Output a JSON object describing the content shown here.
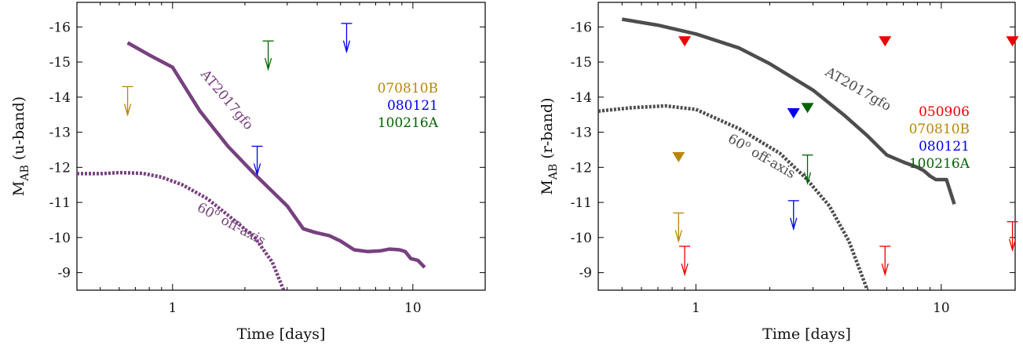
{
  "colors": {
    "ugrb_ext_red": "#ee0000",
    "gold": "#b8860b",
    "blue": "#0000ee",
    "green": "#006400",
    "purple": "#77407f",
    "grey": "#4d4d4d"
  },
  "chart_data": [
    {
      "type": "line",
      "xlabel": "Time [days]",
      "ylabel_main": "M",
      "ylabel_sub": "AB",
      "ylabel_suffix": " (u-band)",
      "xscale": "log",
      "xlim": [
        0.4,
        20
      ],
      "ylim": [
        -8.5,
        -16.7
      ],
      "y_inverted": true,
      "xticks": [
        {
          "v": 1,
          "label": "1"
        },
        {
          "v": 10,
          "label": "10"
        }
      ],
      "yticks": [
        {
          "v": -9,
          "label": "-9"
        },
        {
          "v": -10,
          "label": "-10"
        },
        {
          "v": -11,
          "label": "-11"
        },
        {
          "v": -12,
          "label": "-12"
        },
        {
          "v": -13,
          "label": "-13"
        },
        {
          "v": -14,
          "label": "-14"
        },
        {
          "v": -15,
          "label": "-15"
        },
        {
          "v": -16,
          "label": "-16"
        }
      ],
      "grid": false,
      "legend_position": "right",
      "series": [
        {
          "label": "AT2017gfo",
          "color_key": "purple",
          "style": "solid",
          "points": [
            [
              0.65,
              -15.55
            ],
            [
              0.8,
              -15.2
            ],
            [
              1.0,
              -14.85
            ],
            [
              1.3,
              -13.6
            ],
            [
              1.7,
              -12.6
            ],
            [
              2.2,
              -11.8
            ],
            [
              3.0,
              -10.9
            ],
            [
              3.5,
              -10.25
            ],
            [
              3.9,
              -10.15
            ],
            [
              4.5,
              -10.05
            ],
            [
              5.0,
              -9.9
            ],
            [
              5.7,
              -9.65
            ],
            [
              6.5,
              -9.6
            ],
            [
              7.3,
              -9.62
            ],
            [
              8.0,
              -9.67
            ],
            [
              8.8,
              -9.65
            ],
            [
              9.3,
              -9.6
            ],
            [
              9.8,
              -9.4
            ],
            [
              10.5,
              -9.35
            ],
            [
              11.2,
              -9.15
            ]
          ]
        },
        {
          "label": "60° off-axis",
          "label_base": "60",
          "label_sup": "o",
          "label_rest": " off-axis",
          "color_key": "purple",
          "style": "dotted",
          "points": [
            [
              0.4,
              -11.82
            ],
            [
              0.5,
              -11.82
            ],
            [
              0.6,
              -11.85
            ],
            [
              0.75,
              -11.83
            ],
            [
              0.9,
              -11.72
            ],
            [
              1.1,
              -11.5
            ],
            [
              1.4,
              -11.1
            ],
            [
              1.8,
              -10.5
            ],
            [
              2.2,
              -10.0
            ],
            [
              2.6,
              -9.3
            ],
            [
              2.9,
              -8.5
            ]
          ]
        }
      ],
      "limits": [
        {
          "color_key": "gold",
          "x": 0.65,
          "y": -14.3,
          "marker": "arrow"
        },
        {
          "color_key": "blue",
          "x": 2.25,
          "y": -12.6,
          "marker": "arrow"
        },
        {
          "color_key": "green",
          "x": 2.5,
          "y": -15.6,
          "marker": "arrow"
        },
        {
          "color_key": "blue",
          "x": 5.3,
          "y": -16.1,
          "marker": "arrow"
        }
      ],
      "legend": [
        {
          "label": "070810B",
          "color_key": "gold"
        },
        {
          "label": "080121",
          "color_key": "blue"
        },
        {
          "label": "100216A",
          "color_key": "green"
        }
      ]
    },
    {
      "type": "line",
      "xlabel": "Time [days]",
      "ylabel_main": "M",
      "ylabel_sub": "AB",
      "ylabel_suffix": " (r-band)",
      "xscale": "log",
      "xlim": [
        0.4,
        20
      ],
      "ylim": [
        -8.5,
        -16.7
      ],
      "y_inverted": true,
      "xticks": [
        {
          "v": 1,
          "label": "1"
        },
        {
          "v": 10,
          "label": "10"
        }
      ],
      "yticks": [
        {
          "v": -9,
          "label": "-9"
        },
        {
          "v": -10,
          "label": "-10"
        },
        {
          "v": -11,
          "label": "-11"
        },
        {
          "v": -12,
          "label": "-12"
        },
        {
          "v": -13,
          "label": "-13"
        },
        {
          "v": -14,
          "label": "-14"
        },
        {
          "v": -15,
          "label": "-15"
        },
        {
          "v": -16,
          "label": "-16"
        }
      ],
      "grid": false,
      "legend_position": "right",
      "series": [
        {
          "label": "AT2017gfo",
          "color_key": "grey",
          "style": "solid",
          "points": [
            [
              0.5,
              -16.22
            ],
            [
              0.7,
              -16.05
            ],
            [
              1.0,
              -15.8
            ],
            [
              1.5,
              -15.4
            ],
            [
              2.0,
              -14.95
            ],
            [
              3.0,
              -14.2
            ],
            [
              4.0,
              -13.5
            ],
            [
              5.0,
              -12.9
            ],
            [
              6.0,
              -12.35
            ],
            [
              7.0,
              -12.15
            ],
            [
              8.0,
              -12.0
            ],
            [
              8.5,
              -11.9
            ],
            [
              9.0,
              -11.75
            ],
            [
              9.5,
              -11.65
            ],
            [
              10.5,
              -11.65
            ],
            [
              11.3,
              -10.95
            ]
          ]
        },
        {
          "label": "60° off-axis",
          "label_base": "60",
          "label_sup": "o",
          "label_rest": " off-axis",
          "color_key": "grey",
          "style": "dotted",
          "points": [
            [
              0.4,
              -13.6
            ],
            [
              0.55,
              -13.7
            ],
            [
              0.75,
              -13.75
            ],
            [
              1.0,
              -13.65
            ],
            [
              1.5,
              -13.1
            ],
            [
              2.2,
              -12.4
            ],
            [
              2.8,
              -11.7
            ],
            [
              3.5,
              -10.9
            ],
            [
              4.2,
              -9.9
            ],
            [
              4.7,
              -9.0
            ],
            [
              5.0,
              -8.5
            ]
          ]
        }
      ],
      "detections": [
        {
          "color_key": "ugrb_ext_red",
          "x": 0.9,
          "y": -15.6,
          "marker": "triangle-down"
        },
        {
          "color_key": "ugrb_ext_red",
          "x": 5.9,
          "y": -15.6,
          "marker": "triangle-down"
        },
        {
          "color_key": "ugrb_ext_red",
          "x": 19.5,
          "y": -15.6,
          "marker": "triangle-down"
        },
        {
          "color_key": "gold",
          "x": 0.85,
          "y": -12.3,
          "marker": "triangle-down"
        },
        {
          "color_key": "blue",
          "x": 2.5,
          "y": -13.55,
          "marker": "triangle-down"
        },
        {
          "color_key": "green",
          "x": 2.85,
          "y": -13.7,
          "marker": "triangle-down"
        }
      ],
      "limits": [
        {
          "color_key": "gold",
          "x": 0.85,
          "y": -10.7,
          "marker": "arrow"
        },
        {
          "color_key": "ugrb_ext_red",
          "x": 0.9,
          "y": -9.75,
          "marker": "arrow"
        },
        {
          "color_key": "blue",
          "x": 2.5,
          "y": -11.05,
          "marker": "arrow"
        },
        {
          "color_key": "green",
          "x": 2.85,
          "y": -12.35,
          "marker": "arrow"
        },
        {
          "color_key": "ugrb_ext_red",
          "x": 5.9,
          "y": -9.75,
          "marker": "arrow"
        },
        {
          "color_key": "ugrb_ext_red",
          "x": 19.5,
          "y": -10.45,
          "marker": "arrow"
        }
      ],
      "legend": [
        {
          "label": "050906",
          "color_key": "ugrb_ext_red"
        },
        {
          "label": "070810B",
          "color_key": "gold"
        },
        {
          "label": "080121",
          "color_key": "blue"
        },
        {
          "label": "100216A",
          "color_key": "green"
        }
      ]
    }
  ]
}
